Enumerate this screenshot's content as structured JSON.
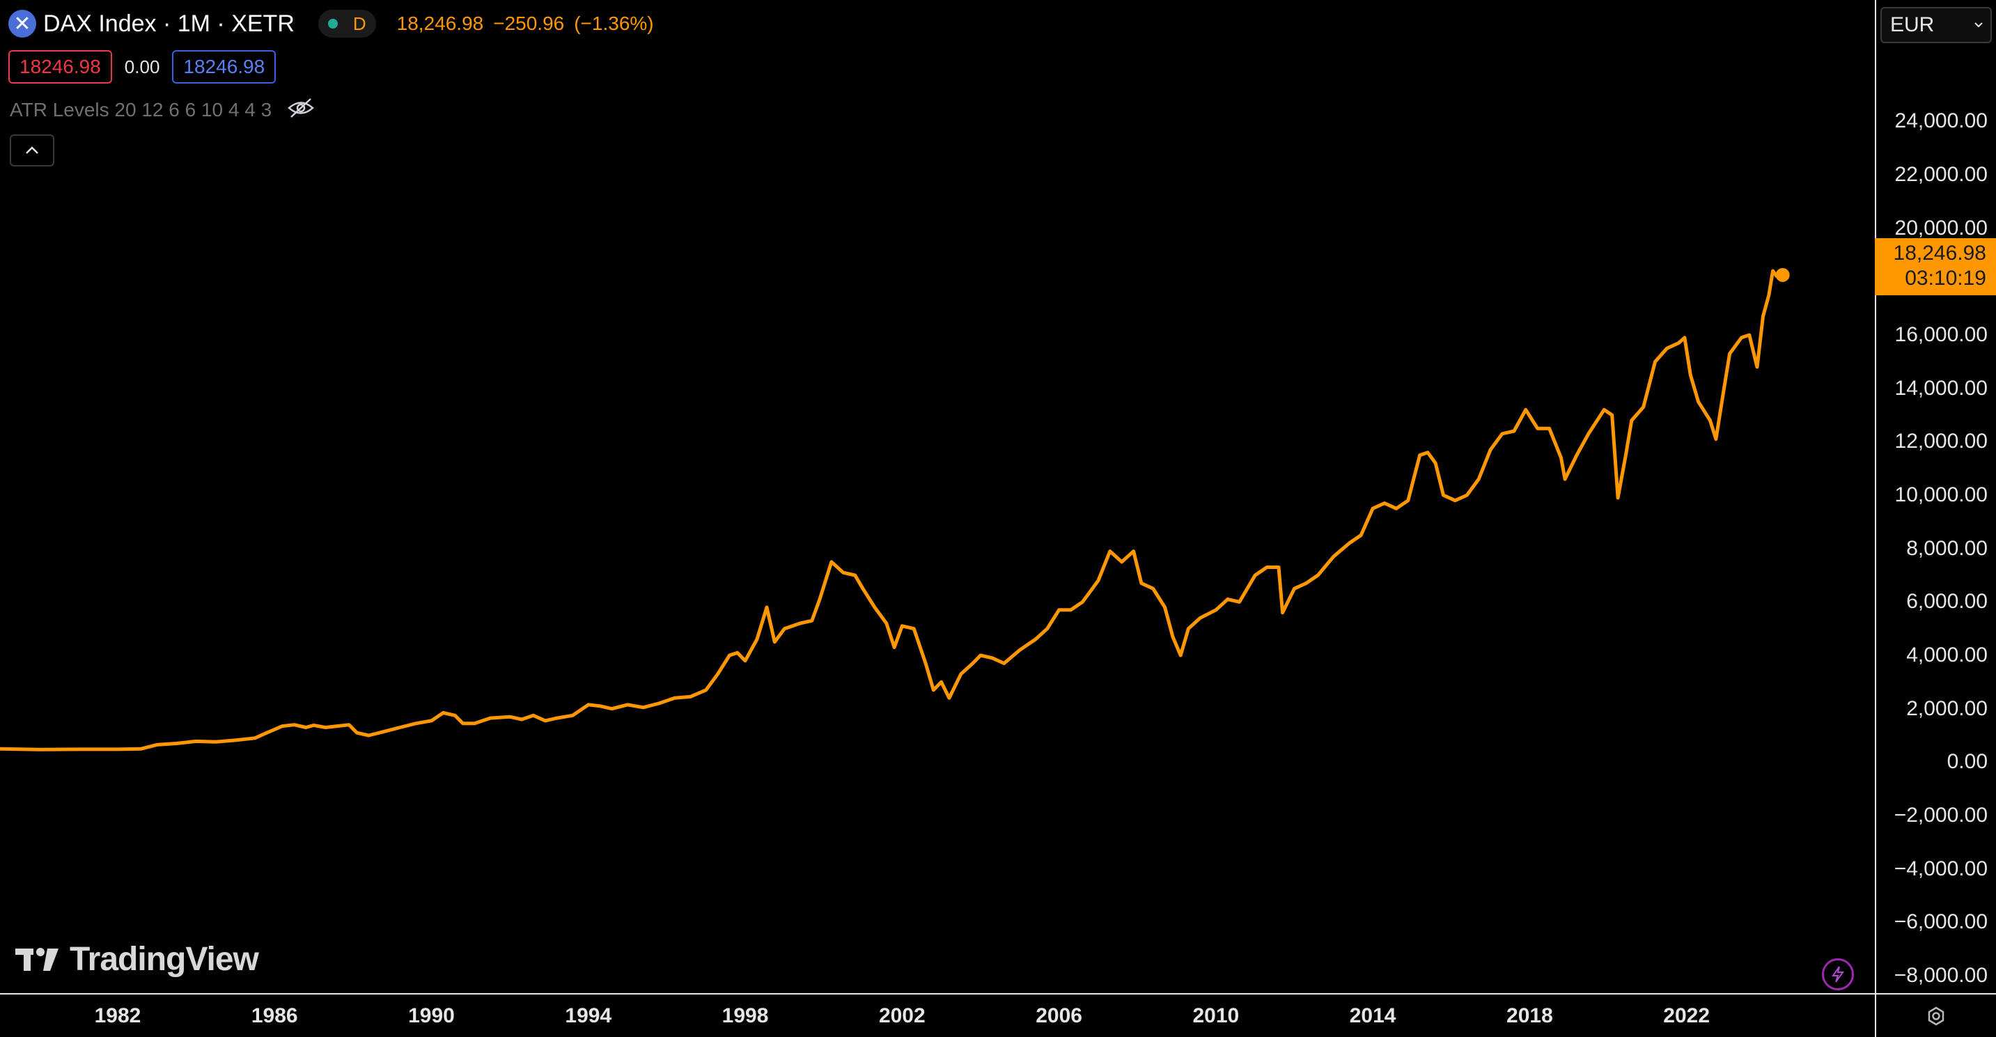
{
  "header": {
    "symbol_icon": "x-close-icon",
    "title": "DAX Index · 1M · XETR",
    "status_letter": "D",
    "last": "18,246.98",
    "change": "−250.96",
    "change_pct": "(−1.36%)"
  },
  "trade": {
    "bid": "18246.98",
    "spread": "0.00",
    "ask": "18246.98"
  },
  "indicator": {
    "label": "ATR Levels 20 12 6 6 10 4 4 3"
  },
  "currency": {
    "value": "EUR"
  },
  "last_price": {
    "value": "18,246.98",
    "countdown": "03:10:19"
  },
  "logo": {
    "text": "TradingView"
  },
  "colors": {
    "line": "#ff9800",
    "background": "#000000",
    "axis_text": "#e6e6e6",
    "bid": "#f23645",
    "ask": "#3860e8"
  },
  "chart_data": {
    "type": "line",
    "title": "DAX Index · 1M · XETR",
    "xlabel": "",
    "ylabel": "",
    "xlim": [
      1979.0,
      2026.8
    ],
    "ylim": [
      -8000,
      25000
    ],
    "y_ticks": [
      "24,000.00",
      "22,000.00",
      "20,000.00",
      "18,000.00",
      "16,000.00",
      "14,000.00",
      "12,000.00",
      "10,000.00",
      "8,000.00",
      "6,000.00",
      "4,000.00",
      "2,000.00",
      "0.00",
      "−2,000.00",
      "−4,000.00",
      "−6,000.00",
      "−8,000.00"
    ],
    "y_tick_values": [
      24000,
      22000,
      20000,
      18000,
      16000,
      14000,
      12000,
      10000,
      8000,
      6000,
      4000,
      2000,
      0,
      -2000,
      -4000,
      -6000,
      -8000
    ],
    "x_ticks": [
      "1982",
      "1986",
      "1990",
      "1994",
      "1998",
      "2002",
      "2006",
      "2010",
      "2014",
      "2018",
      "2022"
    ],
    "x_tick_values": [
      1982,
      1986,
      1990,
      1994,
      1998,
      2002,
      2006,
      2010,
      2014,
      2018,
      2022
    ],
    "grid": false,
    "series": [
      {
        "color": "#ff9800",
        "points": [
          [
            1979.0,
            500
          ],
          [
            1980.0,
            470
          ],
          [
            1981.0,
            480
          ],
          [
            1982.0,
            480
          ],
          [
            1982.6,
            500
          ],
          [
            1983.0,
            650
          ],
          [
            1983.5,
            700
          ],
          [
            1984.0,
            780
          ],
          [
            1984.5,
            760
          ],
          [
            1985.0,
            820
          ],
          [
            1985.5,
            900
          ],
          [
            1985.8,
            1100
          ],
          [
            1986.2,
            1350
          ],
          [
            1986.5,
            1400
          ],
          [
            1986.8,
            1300
          ],
          [
            1987.0,
            1380
          ],
          [
            1987.3,
            1300
          ],
          [
            1987.6,
            1350
          ],
          [
            1987.9,
            1400
          ],
          [
            1988.1,
            1100
          ],
          [
            1988.4,
            1000
          ],
          [
            1988.8,
            1150
          ],
          [
            1989.2,
            1300
          ],
          [
            1989.6,
            1450
          ],
          [
            1990.0,
            1550
          ],
          [
            1990.3,
            1850
          ],
          [
            1990.6,
            1750
          ],
          [
            1990.8,
            1450
          ],
          [
            1991.1,
            1450
          ],
          [
            1991.5,
            1650
          ],
          [
            1992.0,
            1700
          ],
          [
            1992.3,
            1600
          ],
          [
            1992.6,
            1750
          ],
          [
            1992.9,
            1550
          ],
          [
            1993.2,
            1650
          ],
          [
            1993.6,
            1750
          ],
          [
            1994.0,
            2150
          ],
          [
            1994.3,
            2100
          ],
          [
            1994.6,
            2000
          ],
          [
            1995.0,
            2150
          ],
          [
            1995.4,
            2050
          ],
          [
            1995.8,
            2200
          ],
          [
            1996.2,
            2400
          ],
          [
            1996.6,
            2450
          ],
          [
            1997.0,
            2700
          ],
          [
            1997.3,
            3300
          ],
          [
            1997.6,
            4000
          ],
          [
            1997.8,
            4100
          ],
          [
            1998.0,
            3800
          ],
          [
            1998.3,
            4600
          ],
          [
            1998.55,
            5800
          ],
          [
            1998.75,
            4500
          ],
          [
            1999.0,
            5000
          ],
          [
            1999.4,
            5200
          ],
          [
            1999.7,
            5300
          ],
          [
            1999.9,
            6100
          ],
          [
            2000.2,
            7500
          ],
          [
            2000.5,
            7100
          ],
          [
            2000.8,
            7000
          ],
          [
            2001.0,
            6500
          ],
          [
            2001.3,
            5800
          ],
          [
            2001.6,
            5200
          ],
          [
            2001.8,
            4300
          ],
          [
            2002.0,
            5100
          ],
          [
            2002.3,
            5000
          ],
          [
            2002.6,
            3700
          ],
          [
            2002.8,
            2700
          ],
          [
            2003.0,
            3000
          ],
          [
            2003.2,
            2400
          ],
          [
            2003.5,
            3300
          ],
          [
            2003.8,
            3700
          ],
          [
            2004.0,
            4000
          ],
          [
            2004.3,
            3900
          ],
          [
            2004.6,
            3700
          ],
          [
            2005.0,
            4200
          ],
          [
            2005.4,
            4600
          ],
          [
            2005.7,
            5000
          ],
          [
            2006.0,
            5700
          ],
          [
            2006.3,
            5700
          ],
          [
            2006.6,
            6000
          ],
          [
            2007.0,
            6800
          ],
          [
            2007.3,
            7900
          ],
          [
            2007.6,
            7500
          ],
          [
            2007.9,
            7900
          ],
          [
            2008.1,
            6700
          ],
          [
            2008.4,
            6500
          ],
          [
            2008.7,
            5800
          ],
          [
            2008.9,
            4700
          ],
          [
            2009.1,
            4000
          ],
          [
            2009.3,
            5000
          ],
          [
            2009.6,
            5400
          ],
          [
            2010.0,
            5700
          ],
          [
            2010.3,
            6100
          ],
          [
            2010.6,
            6000
          ],
          [
            2011.0,
            7000
          ],
          [
            2011.3,
            7300
          ],
          [
            2011.6,
            7300
          ],
          [
            2011.7,
            5600
          ],
          [
            2012.0,
            6500
          ],
          [
            2012.3,
            6700
          ],
          [
            2012.6,
            7000
          ],
          [
            2013.0,
            7700
          ],
          [
            2013.4,
            8200
          ],
          [
            2013.7,
            8500
          ],
          [
            2014.0,
            9500
          ],
          [
            2014.3,
            9700
          ],
          [
            2014.6,
            9500
          ],
          [
            2014.9,
            9800
          ],
          [
            2015.2,
            11500
          ],
          [
            2015.4,
            11600
          ],
          [
            2015.6,
            11200
          ],
          [
            2015.8,
            10000
          ],
          [
            2016.1,
            9800
          ],
          [
            2016.4,
            10000
          ],
          [
            2016.7,
            10600
          ],
          [
            2017.0,
            11700
          ],
          [
            2017.3,
            12300
          ],
          [
            2017.6,
            12400
          ],
          [
            2017.9,
            13200
          ],
          [
            2018.2,
            12500
          ],
          [
            2018.5,
            12500
          ],
          [
            2018.8,
            11400
          ],
          [
            2018.9,
            10600
          ],
          [
            2019.2,
            11500
          ],
          [
            2019.5,
            12300
          ],
          [
            2019.9,
            13200
          ],
          [
            2020.1,
            13000
          ],
          [
            2020.25,
            9900
          ],
          [
            2020.45,
            11500
          ],
          [
            2020.6,
            12800
          ],
          [
            2020.9,
            13300
          ],
          [
            2021.2,
            15000
          ],
          [
            2021.5,
            15500
          ],
          [
            2021.8,
            15700
          ],
          [
            2021.95,
            15900
          ],
          [
            2022.1,
            14500
          ],
          [
            2022.3,
            13500
          ],
          [
            2022.6,
            12800
          ],
          [
            2022.75,
            12100
          ],
          [
            2022.9,
            13500
          ],
          [
            2023.1,
            15300
          ],
          [
            2023.4,
            15900
          ],
          [
            2023.6,
            16000
          ],
          [
            2023.8,
            14800
          ],
          [
            2023.95,
            16700
          ],
          [
            2024.1,
            17500
          ],
          [
            2024.2,
            18400
          ],
          [
            2024.3,
            18200
          ],
          [
            2024.45,
            18246.98
          ]
        ]
      }
    ]
  }
}
